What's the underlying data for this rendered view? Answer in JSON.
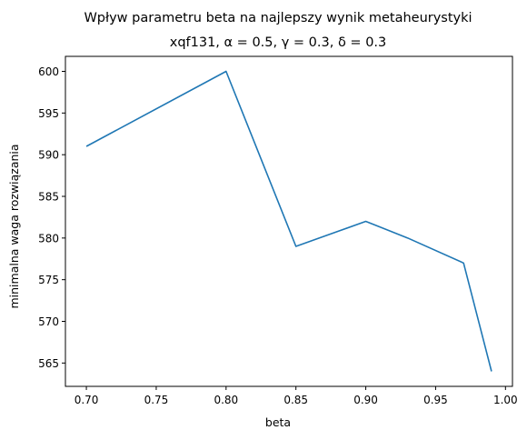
{
  "chart_data": {
    "type": "line",
    "title": "Wpływ parametru beta na najlepszy wynik metaheurystyki",
    "subtitle": "xqf131, α = 0.5, γ = 0.3, δ = 0.3",
    "xlabel": "beta",
    "ylabel": "minimalna waga rozwiązania",
    "xlim": [
      0.685,
      1.005
    ],
    "ylim": [
      562.2,
      601.8
    ],
    "x_ticks": [
      0.7,
      0.75,
      0.8,
      0.85,
      0.9,
      0.95,
      1.0
    ],
    "x_tick_labels": [
      "0.70",
      "0.75",
      "0.80",
      "0.85",
      "0.90",
      "0.95",
      "1.00"
    ],
    "y_ticks": [
      565,
      570,
      575,
      580,
      585,
      590,
      595,
      600
    ],
    "y_tick_labels": [
      "565",
      "570",
      "575",
      "580",
      "585",
      "590",
      "595",
      "600"
    ],
    "grid": false,
    "series": [
      {
        "color": "#1f77b4",
        "x": [
          0.7,
          0.8,
          0.85,
          0.9,
          0.93,
          0.97,
          0.99
        ],
        "y": [
          591,
          600,
          579,
          582,
          580,
          577,
          564
        ]
      }
    ]
  }
}
